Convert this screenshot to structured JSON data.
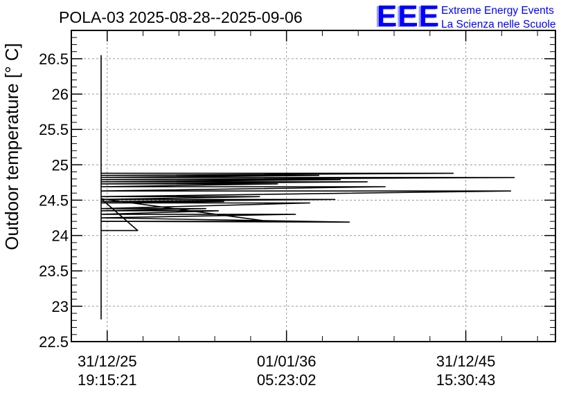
{
  "chart_data": {
    "type": "line",
    "title": "POLA-03 2025-08-28--2025-09-06",
    "ylabel": "Outdoor temperature [° C]",
    "xlabel": "",
    "ylim": [
      22.5,
      26.9
    ],
    "y_ticks": [
      "22.5",
      "23",
      "23.5",
      "24",
      "24.5",
      "25",
      "25.5",
      "26",
      "26.5"
    ],
    "x_ticks": [
      {
        "value": 0.0,
        "date": "31/12/25",
        "time": "19:15:21"
      },
      {
        "value": 1.0,
        "date": "01/01/36",
        "time": "05:23:02"
      },
      {
        "value": 2.0,
        "date": "31/12/45",
        "time": "15:30:43"
      }
    ],
    "xlim": [
      -0.2,
      2.5
    ],
    "grid": true,
    "legend": "none",
    "colors": {
      "line": "#000000",
      "grid": "#999999",
      "logo": "#0000ff"
    },
    "logo": {
      "mark": "EEE",
      "line1": "Extreme Energy Events",
      "line2": "La Scienza nelle Scuole"
    },
    "series": [
      {
        "points": [
          [
            -0.034,
            26.55
          ],
          [
            -0.034,
            22.82
          ],
          [
            -0.034,
            25.18
          ],
          [
            -0.034,
            23.62
          ],
          [
            -0.034,
            24.88
          ],
          [
            1.93,
            24.88
          ],
          [
            -0.034,
            24.85
          ],
          [
            1.18,
            24.85
          ],
          [
            -0.034,
            24.82
          ],
          [
            2.27,
            24.82
          ],
          [
            -0.034,
            24.79
          ],
          [
            1.3,
            24.79
          ],
          [
            -0.034,
            24.76
          ],
          [
            1.45,
            24.76
          ],
          [
            -0.034,
            24.73
          ],
          [
            0.95,
            24.73
          ],
          [
            -0.034,
            24.69
          ],
          [
            1.55,
            24.69
          ],
          [
            -0.034,
            24.63
          ],
          [
            2.25,
            24.63
          ],
          [
            -0.034,
            24.55
          ],
          [
            0.85,
            24.55
          ],
          [
            -0.034,
            24.51
          ],
          [
            1.27,
            24.51
          ],
          [
            -0.034,
            24.48
          ],
          [
            0.65,
            24.48
          ],
          [
            -0.034,
            24.46
          ],
          [
            1.13,
            24.46
          ],
          [
            -0.034,
            24.38
          ],
          [
            0.55,
            24.38
          ],
          [
            -0.034,
            24.35
          ],
          [
            0.62,
            24.35
          ],
          [
            -0.034,
            24.3
          ],
          [
            1.05,
            24.3
          ],
          [
            -0.034,
            24.25
          ],
          [
            1.35,
            24.19
          ],
          [
            -0.034,
            24.2
          ],
          [
            0.9,
            24.2
          ],
          [
            -0.034,
            24.52
          ],
          [
            0.17,
            24.07
          ],
          [
            -0.034,
            24.07
          ]
        ]
      }
    ]
  }
}
